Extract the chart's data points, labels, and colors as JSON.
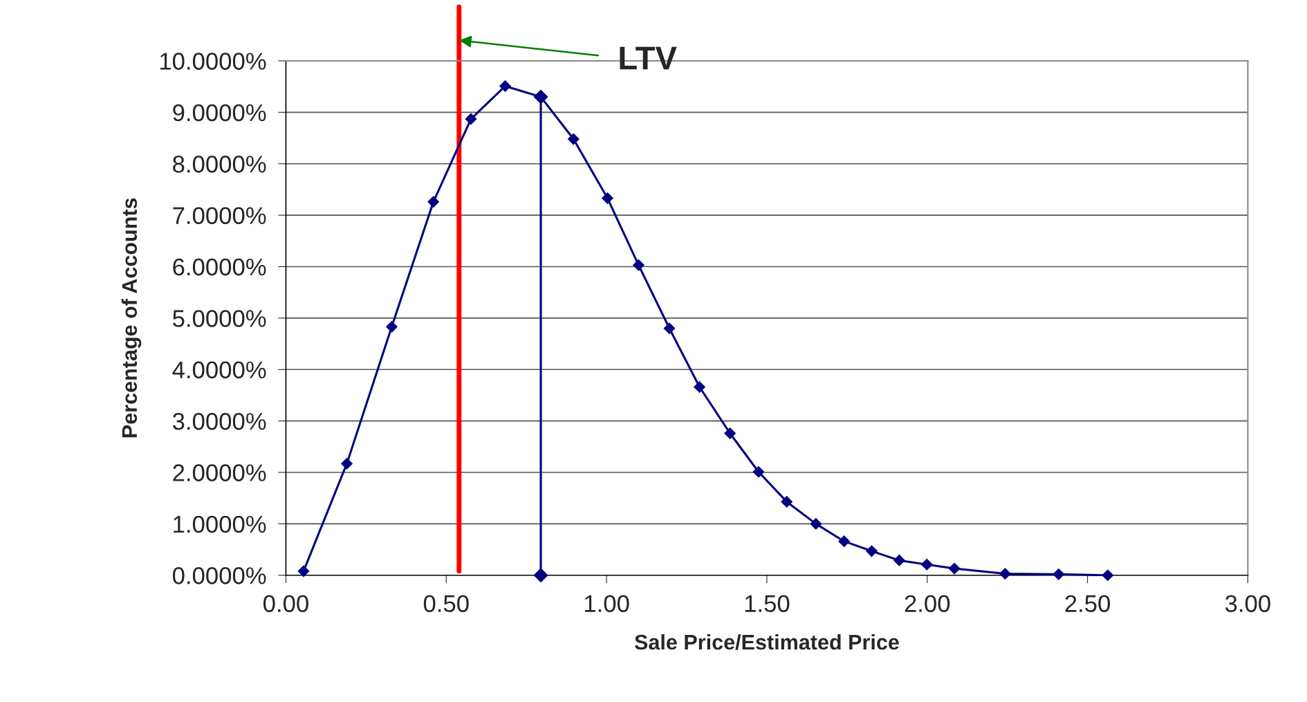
{
  "chart_data": {
    "type": "line",
    "xlabel": "Sale Price/Estimated Price",
    "ylabel": "Percentage of Accounts",
    "series": [
      {
        "color": "#000080",
        "x": [
          0.055,
          0.19,
          0.33,
          0.46,
          0.577,
          0.684,
          0.795,
          0.897,
          1.003,
          1.1,
          1.196,
          1.29,
          1.385,
          1.474,
          1.562,
          1.653,
          1.741,
          1.827,
          1.913,
          1.999,
          2.085,
          2.243,
          2.41,
          2.563
        ],
        "values": [
          0.08,
          2.17,
          4.83,
          7.26,
          8.87,
          9.51,
          9.3,
          8.48,
          7.33,
          6.03,
          4.8,
          3.66,
          2.76,
          2.01,
          1.43,
          1.0,
          0.66,
          0.47,
          0.29,
          0.21,
          0.13,
          0.03,
          0.02,
          0.0
        ]
      },
      {
        "color": "#000080",
        "x": [
          0.795,
          0.795
        ],
        "values": [
          9.3,
          0.0
        ]
      }
    ],
    "marker": "diamond",
    "line_style": "solid",
    "xlim": [
      0,
      3
    ],
    "xticks": [
      {
        "value": 0,
        "label": "0.00"
      },
      {
        "value": 0.5,
        "label": "0.50"
      },
      {
        "value": 1,
        "label": "1.00"
      },
      {
        "value": 1.5,
        "label": "1.50"
      },
      {
        "value": 2,
        "label": "2.00"
      },
      {
        "value": 2.5,
        "label": "2.50"
      },
      {
        "value": 3,
        "label": "3.00"
      }
    ],
    "ylim": [
      0,
      10
    ],
    "yticks": [
      {
        "value": 0,
        "label": "0.0000%"
      },
      {
        "value": 1,
        "label": "1.0000%"
      },
      {
        "value": 2,
        "label": "2.0000%"
      },
      {
        "value": 3,
        "label": "3.0000%"
      },
      {
        "value": 4,
        "label": "4.0000%"
      },
      {
        "value": 5,
        "label": "5.0000%"
      },
      {
        "value": 6,
        "label": "6.0000%"
      },
      {
        "value": 7,
        "label": "7.0000%"
      },
      {
        "value": 8,
        "label": "8.0000%"
      },
      {
        "value": 9,
        "label": "9.0000%"
      },
      {
        "value": 10,
        "label": "10.0000%"
      }
    ],
    "grid": "y",
    "ref_lines": [
      {
        "axis": "x",
        "value": 0.54,
        "color": "#ff0000",
        "label": "LTV"
      }
    ]
  }
}
